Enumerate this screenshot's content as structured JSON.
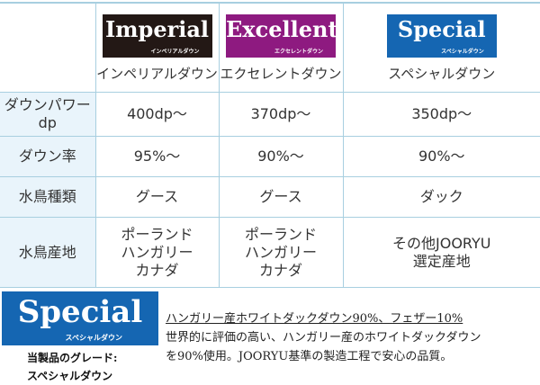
{
  "products": [
    {
      "logo": "Imperial",
      "logo_sub": "インペリアルダウン",
      "name": "インペリアルダウン",
      "color": "#231815"
    },
    {
      "logo": "Excellent",
      "logo_sub": "エクセレントダウン",
      "name": "エクセレントダウン",
      "color": "#8e1a80"
    },
    {
      "logo": "Special",
      "logo_sub": "スペシャルダウン",
      "name": "スペシャルダウン",
      "color": "#1566b2"
    }
  ],
  "rows": [
    {
      "label": "ダウンパワー",
      "label2": "dp",
      "values": [
        "400dp〜",
        "370dp〜",
        "350dp〜"
      ]
    },
    {
      "label": "ダウン率",
      "values": [
        "95%〜",
        "90%〜",
        "90%〜"
      ]
    },
    {
      "label": "水鳥種類",
      "values": [
        "グース",
        "グース",
        "ダック"
      ]
    },
    {
      "label": "水鳥産地",
      "values": [
        [
          "ポーランド",
          "ハンガリー",
          "カナダ"
        ],
        [
          "ポーランド",
          "ハンガリー",
          "カナダ"
        ],
        [
          "その他JOORYU",
          "選定産地"
        ]
      ]
    }
  ],
  "grade": {
    "logo": "Special",
    "logo_sub": "スペシャルダウン",
    "label": "当製品のグレード:",
    "value": "スペシャルダウン",
    "headline": "ハンガリー産ホワイトダックダウン90%、フェザー10%",
    "line1": "世界的に評価の高い、ハンガリー産のホワイトダックダウン",
    "line2": "を90%使用。JOORYU基準の製造工程で安心の品質。"
  }
}
